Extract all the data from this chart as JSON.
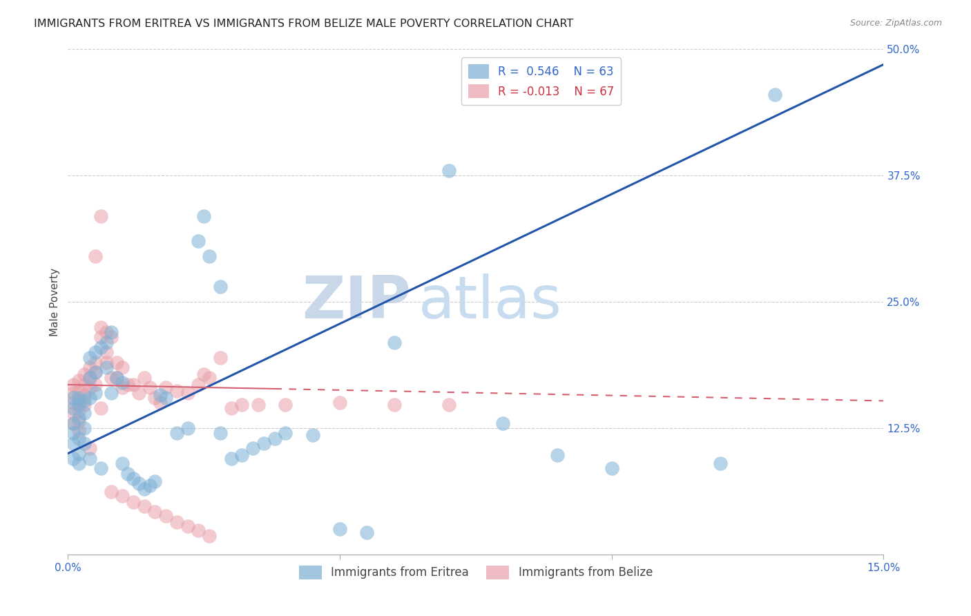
{
  "title": "IMMIGRANTS FROM ERITREA VS IMMIGRANTS FROM BELIZE MALE POVERTY CORRELATION CHART",
  "source": "Source: ZipAtlas.com",
  "ylabel": "Male Poverty",
  "eritrea_color": "#7bafd4",
  "belize_color": "#e8a0a8",
  "eritrea_line_color": "#2255aa",
  "belize_line_color": "#d46070",
  "watermark_zip": "ZIP",
  "watermark_atlas": "atlas",
  "watermark_color": "#dce8f5",
  "background_color": "#ffffff",
  "grid_color": "#cccccc",
  "xlim": [
    0.0,
    0.15
  ],
  "ylim": [
    0.0,
    0.5
  ],
  "eritrea_line_x0": 0.0,
  "eritrea_line_y0": 0.1,
  "eritrea_line_x1": 0.15,
  "eritrea_line_y1": 0.485,
  "belize_line_x0": 0.0,
  "belize_line_y0": 0.168,
  "belize_line_x1": 0.15,
  "belize_line_y1": 0.152,
  "eritrea_scatter_x": [
    0.001,
    0.001,
    0.001,
    0.001,
    0.001,
    0.001,
    0.002,
    0.002,
    0.002,
    0.002,
    0.002,
    0.002,
    0.003,
    0.003,
    0.003,
    0.003,
    0.004,
    0.004,
    0.004,
    0.004,
    0.005,
    0.005,
    0.005,
    0.006,
    0.006,
    0.007,
    0.007,
    0.008,
    0.008,
    0.009,
    0.01,
    0.01,
    0.011,
    0.012,
    0.013,
    0.014,
    0.015,
    0.016,
    0.017,
    0.018,
    0.02,
    0.022,
    0.024,
    0.026,
    0.028,
    0.03,
    0.032,
    0.034,
    0.036,
    0.038,
    0.04,
    0.045,
    0.05,
    0.055,
    0.06,
    0.07,
    0.08,
    0.09,
    0.1,
    0.12,
    0.13,
    0.025,
    0.028
  ],
  "eritrea_scatter_y": [
    0.145,
    0.155,
    0.13,
    0.12,
    0.11,
    0.095,
    0.148,
    0.155,
    0.135,
    0.115,
    0.1,
    0.09,
    0.152,
    0.14,
    0.125,
    0.11,
    0.195,
    0.175,
    0.155,
    0.095,
    0.2,
    0.18,
    0.16,
    0.205,
    0.085,
    0.21,
    0.185,
    0.22,
    0.16,
    0.175,
    0.17,
    0.09,
    0.08,
    0.075,
    0.07,
    0.065,
    0.068,
    0.072,
    0.158,
    0.155,
    0.12,
    0.125,
    0.31,
    0.295,
    0.12,
    0.095,
    0.098,
    0.105,
    0.11,
    0.115,
    0.12,
    0.118,
    0.025,
    0.022,
    0.21,
    0.38,
    0.13,
    0.098,
    0.085,
    0.09,
    0.455,
    0.335,
    0.265
  ],
  "belize_scatter_x": [
    0.001,
    0.001,
    0.001,
    0.001,
    0.001,
    0.002,
    0.002,
    0.002,
    0.002,
    0.002,
    0.002,
    0.003,
    0.003,
    0.003,
    0.003,
    0.004,
    0.004,
    0.004,
    0.004,
    0.005,
    0.005,
    0.005,
    0.006,
    0.006,
    0.006,
    0.007,
    0.007,
    0.008,
    0.008,
    0.009,
    0.009,
    0.01,
    0.01,
    0.011,
    0.012,
    0.013,
    0.014,
    0.015,
    0.016,
    0.017,
    0.018,
    0.02,
    0.022,
    0.024,
    0.026,
    0.03,
    0.035,
    0.04,
    0.05,
    0.06,
    0.07,
    0.025,
    0.028,
    0.032,
    0.008,
    0.01,
    0.012,
    0.014,
    0.016,
    0.018,
    0.02,
    0.022,
    0.024,
    0.026,
    0.006,
    0.007,
    0.005
  ],
  "belize_scatter_y": [
    0.168,
    0.16,
    0.15,
    0.14,
    0.13,
    0.172,
    0.162,
    0.152,
    0.142,
    0.132,
    0.122,
    0.178,
    0.168,
    0.158,
    0.148,
    0.185,
    0.175,
    0.165,
    0.105,
    0.19,
    0.18,
    0.168,
    0.225,
    0.215,
    0.145,
    0.2,
    0.19,
    0.215,
    0.175,
    0.19,
    0.175,
    0.185,
    0.165,
    0.168,
    0.168,
    0.16,
    0.175,
    0.165,
    0.155,
    0.15,
    0.165,
    0.162,
    0.16,
    0.168,
    0.175,
    0.145,
    0.148,
    0.148,
    0.15,
    0.148,
    0.148,
    0.178,
    0.195,
    0.148,
    0.062,
    0.058,
    0.052,
    0.048,
    0.042,
    0.038,
    0.032,
    0.028,
    0.024,
    0.018,
    0.335,
    0.22,
    0.295
  ]
}
